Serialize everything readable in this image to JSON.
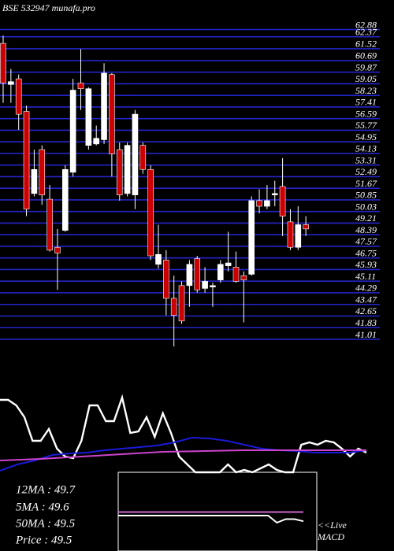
{
  "chart_data": {
    "type": "candlestick",
    "title": "BSE 532947 munafa.pro",
    "ylim": [
      41.01,
      62.88
    ],
    "yticks": [
      62.88,
      62.37,
      61.52,
      60.69,
      59.87,
      59.05,
      58.23,
      57.41,
      56.59,
      55.77,
      54.95,
      54.13,
      53.31,
      52.49,
      51.67,
      50.85,
      50.03,
      49.21,
      48.39,
      47.57,
      46.75,
      45.93,
      45.11,
      44.29,
      43.47,
      42.65,
      41.83,
      41.01
    ],
    "grid": true,
    "grid_color": "#2424c8",
    "up_color": "#ffffff",
    "down_color": "#cc0000",
    "open": [
      61.9,
      59.0,
      59.4,
      57.1,
      51.3,
      54.4,
      50.9,
      47.5,
      48.7,
      52.8,
      59.1,
      54.7,
      54.8,
      55.1,
      59.7,
      54.4,
      51.3,
      51.2,
      54.7,
      53.0,
      46.3,
      46.6,
      43.9,
      44.8,
      44.8,
      46.7,
      44.6,
      44.7,
      45.2,
      46.2,
      46.1,
      45.5,
      45.6,
      50.8,
      50.4,
      51.2,
      51.8,
      49.3,
      47.5,
      49.1
    ],
    "high": [
      62.45,
      60.1,
      59.7,
      57.5,
      54.4,
      54.7,
      51.9,
      48.8,
      53.3,
      59.4,
      61.5,
      58.8,
      56.1,
      60.5,
      59.8,
      54.9,
      54.9,
      57.2,
      54.9,
      53.3,
      49.1,
      47.3,
      45.5,
      45.1,
      46.6,
      46.9,
      46.1,
      45.0,
      46.6,
      48.6,
      47.2,
      45.8,
      51.1,
      51.6,
      51.9,
      52.2,
      53.8,
      50.2,
      50.4,
      49.7
    ],
    "low": [
      57.7,
      57.7,
      55.8,
      49.7,
      51.1,
      50.5,
      47.2,
      44.5,
      48.6,
      52.5,
      57.2,
      54.4,
      54.7,
      54.8,
      52.5,
      50.8,
      51.1,
      50.2,
      52.7,
      46.6,
      46.0,
      42.7,
      40.5,
      42.1,
      43.3,
      44.3,
      44.3,
      43.3,
      45.0,
      45.8,
      45.0,
      42.2,
      45.5,
      49.9,
      50.2,
      50.4,
      48.3,
      47.3,
      47.3,
      48.3
    ],
    "close": [
      59.1,
      59.2,
      56.9,
      50.2,
      53.0,
      51.2,
      47.3,
      47.1,
      53.0,
      58.6,
      58.7,
      58.7,
      55.2,
      59.8,
      54.1,
      51.2,
      54.7,
      56.9,
      53.0,
      46.9,
      47.0,
      43.9,
      42.7,
      42.3,
      46.3,
      44.5,
      45.1,
      44.8,
      46.3,
      46.4,
      45.1,
      45.2,
      50.8,
      50.4,
      50.8,
      51.3,
      49.7,
      47.5,
      49.1,
      48.8
    ],
    "indicator": {
      "ylim": [
        0,
        100
      ],
      "series": [
        {
          "color": "#ffffff",
          "values": [
            92,
            92,
            85,
            70,
            40,
            40,
            55,
            30,
            20,
            18,
            40,
            85,
            85,
            65,
            65,
            95,
            50,
            52,
            70,
            45,
            75,
            50,
            20,
            10,
            0,
            0,
            0,
            0,
            10,
            0,
            3,
            0,
            5,
            10,
            3,
            0,
            0,
            35,
            38,
            35,
            40,
            38,
            30,
            20,
            30,
            25
          ]
        },
        {
          "color": "#1a1ad8",
          "values": [
            2,
            10,
            15,
            22,
            24,
            25,
            28,
            30,
            32,
            34,
            38,
            44,
            43,
            40,
            35,
            30,
            28,
            27,
            25,
            25,
            25,
            28
          ]
        },
        {
          "color": "#cc44cc",
          "values": [
            15,
            17,
            20,
            23,
            26,
            27,
            28,
            28,
            28,
            28
          ]
        }
      ]
    },
    "macd": {
      "ylim": [
        0,
        100
      ],
      "label": "<<Live",
      "name": "MACD",
      "series": [
        {
          "color": "#cc66cc",
          "values": [
            55,
            55
          ]
        },
        {
          "color": "#ffffff",
          "values": [
            50,
            50,
            50,
            50,
            50,
            50,
            50,
            50,
            50,
            50,
            50,
            50,
            50,
            50,
            50,
            50,
            50,
            50,
            40,
            45,
            45,
            42
          ]
        }
      ]
    },
    "stats": [
      "12MA : 49.7",
      "5MA : 49.6",
      "50MA : 49.5",
      "Price   : 49.5"
    ]
  }
}
